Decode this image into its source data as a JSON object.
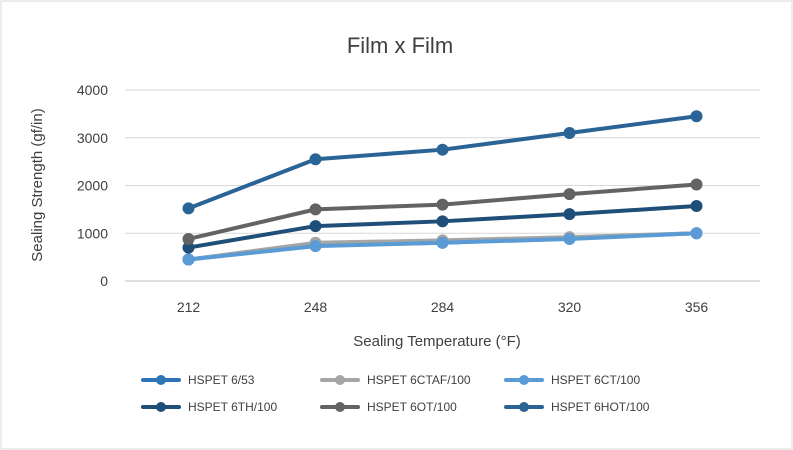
{
  "chart_data": {
    "type": "line",
    "title": "Film x Film",
    "xlabel": "Sealing Temperature (°F)",
    "ylabel": "Sealing Strength (gf/in)",
    "categories": [
      "212",
      "248",
      "284",
      "320",
      "356"
    ],
    "ylim": [
      0,
      4000
    ],
    "yticks": [
      0,
      1000,
      2000,
      3000,
      4000
    ],
    "grid": true,
    "legend_position": "bottom",
    "series": [
      {
        "name": "HSPET 6/53",
        "color": "#2E75B6",
        "values": [
          450,
          750,
          800,
          900,
          1000
        ]
      },
      {
        "name": "HSPET 6CTAF/100",
        "color": "#A5A5A5",
        "values": [
          450,
          800,
          850,
          920,
          1000
        ]
      },
      {
        "name": "HSPET 6CT/100",
        "color": "#5B9BD5",
        "values": [
          450,
          730,
          800,
          880,
          1000
        ]
      },
      {
        "name": "HSPET 6TH/100",
        "color": "#1F4E79",
        "values": [
          700,
          1150,
          1250,
          1400,
          1570
        ]
      },
      {
        "name": "HSPET 6OT/100",
        "color": "#636363",
        "values": [
          880,
          1500,
          1600,
          1820,
          2020
        ]
      },
      {
        "name": "HSPET 6HOT/100",
        "color": "#2A6496",
        "values": [
          1520,
          2550,
          2750,
          3100,
          3450
        ]
      }
    ]
  }
}
